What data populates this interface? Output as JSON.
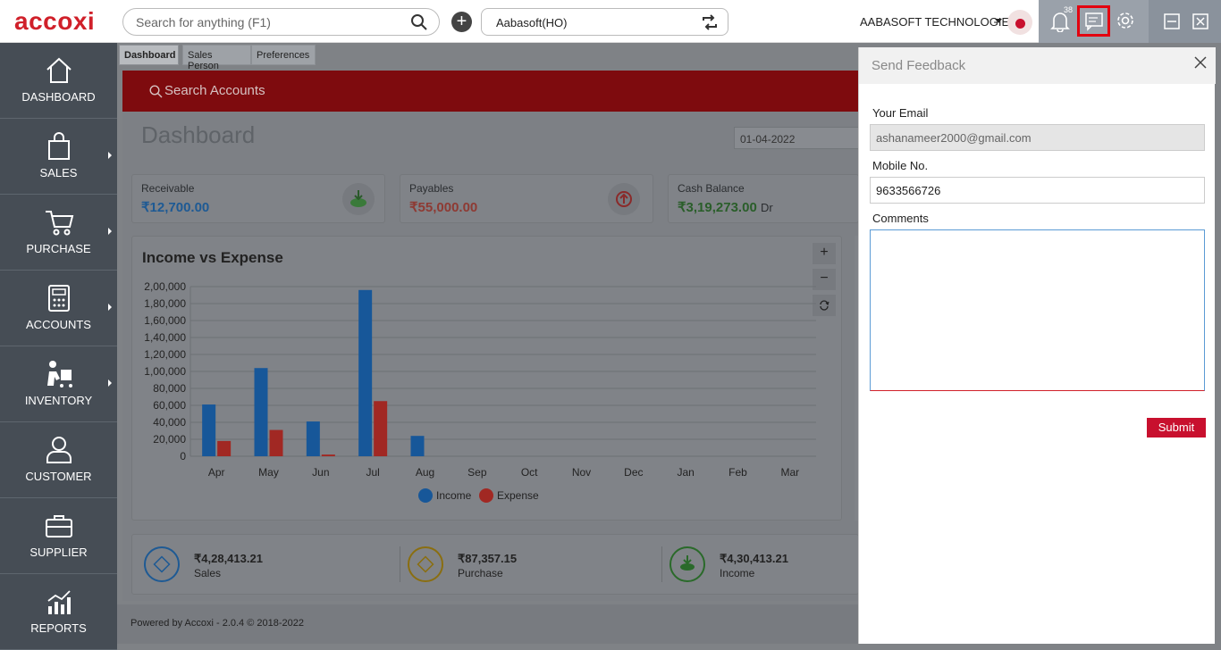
{
  "topbar": {
    "logo": "accoxi",
    "search_placeholder": "Search for anything (F1)",
    "branch": "Aabasoft(HO)",
    "company": "AABASOFT TECHNOLOGIES",
    "notification_count": "38"
  },
  "sidebar": {
    "items": [
      {
        "label": "DASHBOARD",
        "icon": "home-icon"
      },
      {
        "label": "SALES",
        "icon": "shopping-bag-icon"
      },
      {
        "label": "PURCHASE",
        "icon": "cart-icon"
      },
      {
        "label": "ACCOUNTS",
        "icon": "calculator-icon"
      },
      {
        "label": "INVENTORY",
        "icon": "inventory-icon"
      },
      {
        "label": "CUSTOMER",
        "icon": "user-icon"
      },
      {
        "label": "SUPPLIER",
        "icon": "briefcase-icon"
      },
      {
        "label": "REPORTS",
        "icon": "chart-icon"
      }
    ]
  },
  "tabs": [
    "Dashboard",
    "Sales Person",
    "Preferences"
  ],
  "search_accounts": "Search Accounts",
  "dashboard": {
    "title": "Dashboard",
    "date": "01-04-2022",
    "cards": [
      {
        "title": "Receivable",
        "value": "₹12,700.00",
        "color": "#1e73be"
      },
      {
        "title": "Payables",
        "value": "₹55,000.00",
        "color": "#b8453b"
      },
      {
        "title": "Cash Balance",
        "value": "₹3,19,273.00",
        "suffix": "Dr",
        "color": "#2e7d32"
      }
    ],
    "summary": [
      {
        "value": "₹4,28,413.21",
        "label": "Sales",
        "color": "#1e73be"
      },
      {
        "value": "₹87,357.15",
        "label": "Purchase",
        "color": "#c49a00"
      },
      {
        "value": "₹4,30,413.21",
        "label": "Income",
        "color": "#2e8b2e"
      }
    ],
    "footer": "Powered by Accoxi - 2.0.4 © 2018-2022"
  },
  "chart_data": {
    "type": "bar",
    "title": "Income vs Expense",
    "categories": [
      "Apr",
      "May",
      "Jun",
      "Jul",
      "Aug",
      "Sep",
      "Oct",
      "Nov",
      "Dec",
      "Jan",
      "Feb",
      "Mar"
    ],
    "series": [
      {
        "name": "Income",
        "color": "#1e6fbf",
        "values": [
          61000,
          104000,
          41000,
          196000,
          24000,
          0,
          0,
          0,
          0,
          0,
          0,
          0
        ]
      },
      {
        "name": "Expense",
        "color": "#c9312b",
        "values": [
          18000,
          31000,
          2000,
          65000,
          0,
          0,
          0,
          0,
          0,
          0,
          0,
          0
        ]
      }
    ],
    "yticks": [
      "0",
      "20,000",
      "40,000",
      "60,000",
      "80,000",
      "1,00,000",
      "1,20,000",
      "1,40,000",
      "1,60,000",
      "1,80,000",
      "2,00,000"
    ],
    "ylim": [
      0,
      200000
    ],
    "legend": "bottom"
  },
  "feedback": {
    "title": "Send Feedback",
    "email_label": "Your Email",
    "email_value": "ashanameer2000@gmail.com",
    "mobile_label": "Mobile No.",
    "mobile_value": "9633566726",
    "comments_label": "Comments",
    "submit": "Submit"
  }
}
